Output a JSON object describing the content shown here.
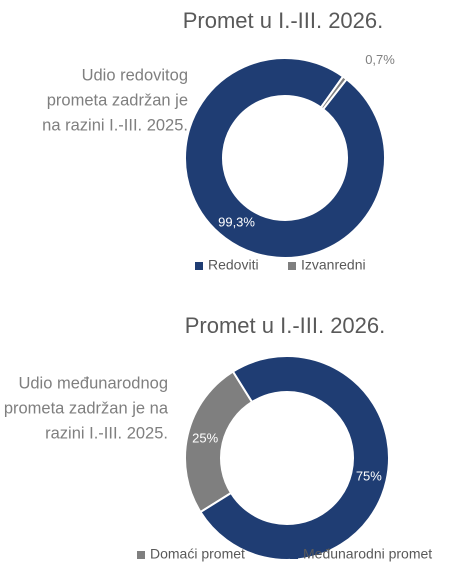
{
  "chart_data": [
    {
      "type": "donut",
      "title": "Promet u I.-III. 2026.",
      "annotation": [
        "Udio redovitog",
        "prometa zadržan je",
        "na razini I.-III. 2025."
      ],
      "categories": [
        "Redoviti",
        "Izvanredni"
      ],
      "values": [
        99.3,
        0.7
      ],
      "value_labels": [
        "99,3%",
        "0,7%"
      ],
      "colors": [
        "#1f3d73",
        "#7f7f7f"
      ],
      "legend": "bottom"
    },
    {
      "type": "donut",
      "title": "Promet u I.-III. 2026.",
      "annotation": [
        "Udio međunarodnog",
        "prometa zadržan je na",
        "razini I.-III. 2025."
      ],
      "categories": [
        "Domaći promet",
        "Međunarodni promet"
      ],
      "values": [
        25,
        75
      ],
      "value_labels": [
        "25%",
        "75%"
      ],
      "colors": [
        "#7f7f7f",
        "#1f3d73"
      ],
      "legend": "bottom"
    }
  ]
}
